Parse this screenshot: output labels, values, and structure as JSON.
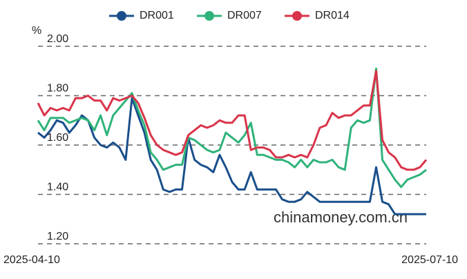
{
  "chart_data": {
    "type": "line",
    "y_unit": "%",
    "watermark": "chinamoney.com.cn",
    "legend": "top",
    "grid": true,
    "ylim": [
      1.2,
      2.0
    ],
    "yticks": [
      {
        "value": 2.0,
        "label": "2.00"
      },
      {
        "value": 1.8,
        "label": "1.80"
      },
      {
        "value": 1.6,
        "label": "1.60"
      },
      {
        "value": 1.4,
        "label": "1.40"
      },
      {
        "value": 1.2,
        "label": "1.20"
      }
    ],
    "categories": [
      "2025-04-10",
      null,
      null,
      null,
      null,
      null,
      null,
      null,
      null,
      null,
      null,
      null,
      null,
      null,
      null,
      null,
      null,
      null,
      null,
      null,
      null,
      null,
      null,
      null,
      null,
      null,
      null,
      null,
      null,
      null,
      null,
      null,
      null,
      null,
      null,
      null,
      null,
      null,
      null,
      null,
      null,
      null,
      null,
      null,
      null,
      null,
      null,
      null,
      null,
      null,
      null,
      null,
      null,
      null,
      null,
      null,
      null,
      null,
      null,
      null,
      null,
      null,
      "2025-07-10"
    ],
    "series": [
      {
        "name": "DR001",
        "color": "#1a4f8b",
        "values": [
          1.65,
          1.63,
          1.66,
          1.7,
          1.69,
          1.65,
          1.68,
          1.72,
          1.7,
          1.63,
          1.6,
          1.59,
          1.61,
          1.59,
          1.54,
          1.79,
          1.72,
          1.65,
          1.54,
          1.5,
          1.42,
          1.41,
          1.42,
          1.42,
          1.63,
          1.54,
          1.52,
          1.51,
          1.49,
          1.56,
          1.51,
          1.45,
          1.42,
          1.42,
          1.49,
          1.42,
          1.42,
          1.42,
          1.42,
          1.38,
          1.37,
          1.37,
          1.38,
          1.41,
          1.39,
          1.37,
          1.37,
          1.37,
          1.37,
          1.37,
          1.37,
          1.37,
          1.37,
          1.37,
          1.51,
          1.37,
          1.36,
          1.32,
          1.32,
          1.32,
          1.32,
          1.32,
          1.32
        ]
      },
      {
        "name": "DR007",
        "color": "#2fb37a",
        "values": [
          1.7,
          1.66,
          1.71,
          1.71,
          1.71,
          1.69,
          1.7,
          1.71,
          1.7,
          1.66,
          1.72,
          1.64,
          1.72,
          1.75,
          1.78,
          1.81,
          1.74,
          1.68,
          1.57,
          1.54,
          1.5,
          1.51,
          1.52,
          1.52,
          1.63,
          1.62,
          1.6,
          1.58,
          1.57,
          1.58,
          1.65,
          1.63,
          1.61,
          1.64,
          1.69,
          1.56,
          1.56,
          1.55,
          1.54,
          1.54,
          1.53,
          1.51,
          1.54,
          1.51,
          1.54,
          1.53,
          1.53,
          1.54,
          1.51,
          1.5,
          1.67,
          1.7,
          1.69,
          1.7,
          1.91,
          1.54,
          1.5,
          1.46,
          1.43,
          1.46,
          1.47,
          1.48,
          1.5
        ]
      },
      {
        "name": "DR014",
        "color": "#d9344a",
        "values": [
          1.77,
          1.72,
          1.75,
          1.74,
          1.75,
          1.74,
          1.79,
          1.79,
          1.8,
          1.78,
          1.78,
          1.74,
          1.79,
          1.78,
          1.79,
          1.8,
          1.77,
          1.71,
          1.64,
          1.6,
          1.58,
          1.57,
          1.56,
          1.57,
          1.64,
          1.66,
          1.68,
          1.67,
          1.68,
          1.7,
          1.69,
          1.69,
          1.72,
          1.72,
          1.58,
          1.59,
          1.59,
          1.58,
          1.55,
          1.55,
          1.56,
          1.55,
          1.56,
          1.55,
          1.6,
          1.67,
          1.68,
          1.73,
          1.71,
          1.72,
          1.72,
          1.74,
          1.76,
          1.76,
          1.9,
          1.62,
          1.57,
          1.55,
          1.51,
          1.5,
          1.5,
          1.51,
          1.54
        ]
      }
    ]
  }
}
